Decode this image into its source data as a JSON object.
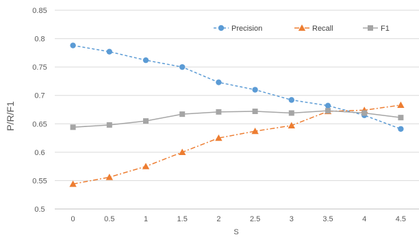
{
  "chart_data": {
    "type": "line",
    "xlabel": "S",
    "ylabel": "P/R/F1",
    "categories": [
      "0",
      "0.5",
      "1",
      "1.5",
      "2",
      "2.5",
      "3",
      "3.5",
      "4",
      "4.5"
    ],
    "ylim": [
      0.5,
      0.85
    ],
    "yticks": [
      0.5,
      0.55,
      0.6,
      0.65,
      0.7,
      0.75,
      0.8,
      0.85
    ],
    "grid": true,
    "legend_position": "top-right",
    "series": [
      {
        "name": "Precision",
        "color": "#5b9bd5",
        "marker": "circle",
        "line_style": "dashed",
        "values": [
          0.788,
          0.777,
          0.762,
          0.75,
          0.723,
          0.71,
          0.692,
          0.682,
          0.665,
          0.641
        ]
      },
      {
        "name": "Recall",
        "color": "#ed7d31",
        "marker": "triangle",
        "line_style": "dash-dot",
        "values": [
          0.544,
          0.556,
          0.575,
          0.6,
          0.625,
          0.637,
          0.647,
          0.672,
          0.674,
          0.683
        ]
      },
      {
        "name": "F1",
        "color": "#a5a5a5",
        "marker": "square",
        "line_style": "solid",
        "values": [
          0.644,
          0.648,
          0.655,
          0.667,
          0.671,
          0.672,
          0.669,
          0.673,
          0.669,
          0.661
        ]
      }
    ]
  }
}
